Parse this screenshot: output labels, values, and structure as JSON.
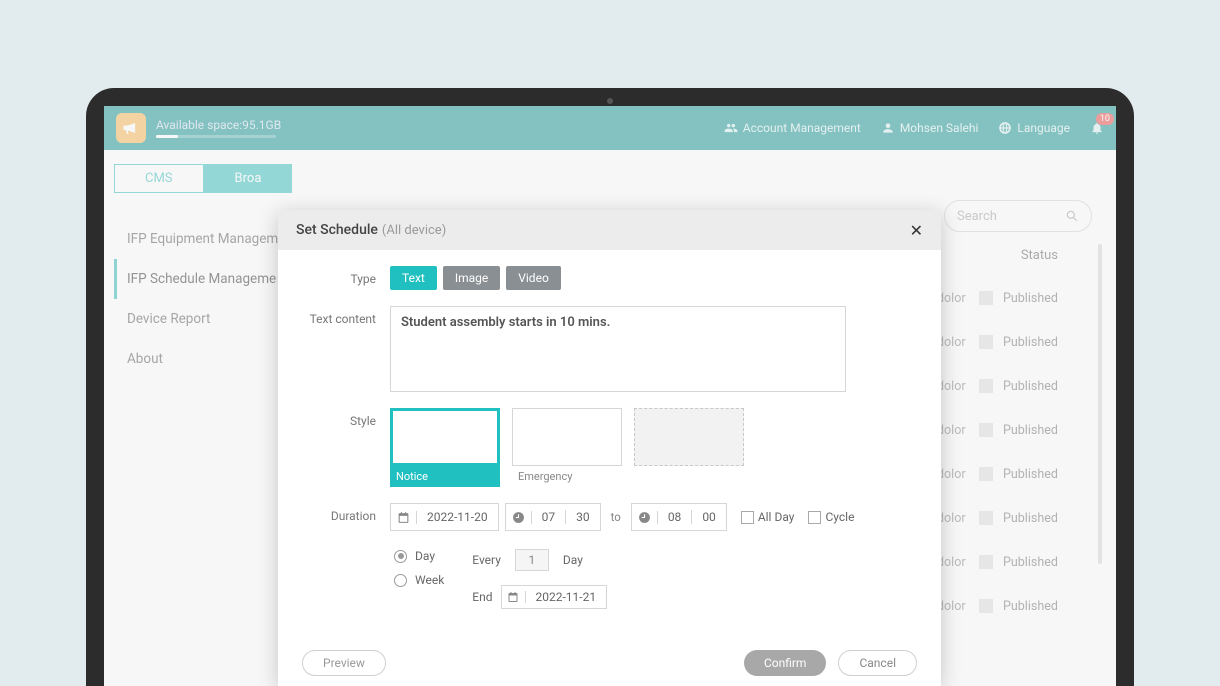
{
  "colors": {
    "accent": "#21c0c0",
    "topbar": "#008a8a",
    "badge": "#e53935",
    "logo_bg": "#f6b042"
  },
  "topbar": {
    "available_space": "Available space:95.1GB",
    "account_mgmt": "Account Management",
    "user_name": "Mohsen Salehi",
    "language": "Language",
    "notif_count": "10"
  },
  "tabs": {
    "cms": "CMS",
    "broadcast": "Broa"
  },
  "sidebar": {
    "items": [
      "IFP Equipment Managem",
      "IFP Schedule Manageme",
      "Device Report",
      "About"
    ],
    "active_index": 1
  },
  "search": {
    "placeholder": "Search"
  },
  "table": {
    "status_header": "Status",
    "dolor": "dolor",
    "published": "Published",
    "rows": 8
  },
  "modal": {
    "title": "Set Schedule",
    "subtitle": "(All device)",
    "labels": {
      "type": "Type",
      "text_content": "Text content",
      "style": "Style",
      "duration": "Duration"
    },
    "type_chips": {
      "text": "Text",
      "image": "Image",
      "video": "Video"
    },
    "text_content": "Student assembly starts in 10 mins.",
    "styles": {
      "notice": "Notice",
      "emergency": "Emergency"
    },
    "duration": {
      "start_date": "2022-11-20",
      "start_h": "07",
      "start_m": "30",
      "to": "to",
      "end_h": "08",
      "end_m": "00",
      "all_day": "All Day",
      "cycle": "Cycle"
    },
    "cycle": {
      "day": "Day",
      "week": "Week",
      "every": "Every",
      "every_val": "1",
      "every_unit": "Day",
      "end": "End",
      "end_date": "2022-11-21"
    },
    "buttons": {
      "preview": "Preview",
      "confirm": "Confirm",
      "cancel": "Cancel"
    }
  }
}
